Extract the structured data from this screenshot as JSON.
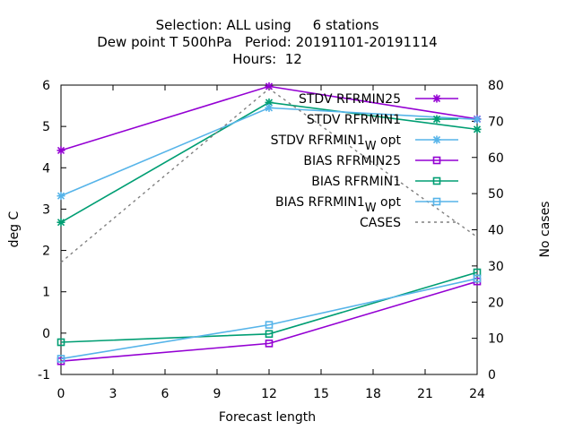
{
  "chart_data": {
    "type": "line",
    "title_lines": [
      "Selection: ALL using     6 stations",
      "Dew point T 500hPa   Period: 20191101-20191114",
      "Hours:  12"
    ],
    "xlabel": "Forecast length",
    "ylabel": "deg C",
    "y2label": "No cases",
    "xlim": [
      0,
      24
    ],
    "ylim": [
      -1,
      6
    ],
    "y2lim": [
      0,
      80
    ],
    "xticks": [
      "0",
      "3",
      "6",
      "9",
      "12",
      "15",
      "18",
      "21",
      "24"
    ],
    "yticks": [
      "-1",
      "0",
      "1",
      "2",
      "3",
      "4",
      "5",
      "6"
    ],
    "y2ticks": [
      "0",
      "10",
      "20",
      "30",
      "40",
      "50",
      "60",
      "70",
      "80"
    ],
    "grid": false,
    "legend_position": "top-right",
    "x": [
      0,
      12,
      24
    ],
    "series": [
      {
        "name": "STDV RFRMIN25",
        "name_sub": "",
        "name_tail": "",
        "axis": "y",
        "marker": "star",
        "dash": false,
        "color": "#9400d3",
        "values": [
          4.42,
          5.97,
          5.18
        ]
      },
      {
        "name": "STDV RFRMIN1",
        "name_sub": "",
        "name_tail": "",
        "axis": "y",
        "marker": "star",
        "dash": false,
        "color": "#009e73",
        "values": [
          2.68,
          5.58,
          4.93
        ]
      },
      {
        "name": "STDV RFRMIN1",
        "name_sub": "W",
        "name_tail": " opt",
        "axis": "y",
        "marker": "star",
        "dash": false,
        "color": "#56b4e9",
        "values": [
          3.32,
          5.45,
          5.17
        ]
      },
      {
        "name": "BIAS RFRMIN25",
        "name_sub": "",
        "name_tail": "",
        "axis": "y",
        "marker": "square",
        "dash": false,
        "color": "#9400d3",
        "values": [
          -0.68,
          -0.25,
          1.25
        ]
      },
      {
        "name": "BIAS RFRMIN1",
        "name_sub": "",
        "name_tail": "",
        "axis": "y",
        "marker": "square",
        "dash": false,
        "color": "#009e73",
        "values": [
          -0.22,
          -0.02,
          1.47
        ]
      },
      {
        "name": "BIAS RFRMIN1",
        "name_sub": "W",
        "name_tail": " opt",
        "axis": "y",
        "marker": "square",
        "dash": false,
        "color": "#56b4e9",
        "values": [
          -0.62,
          0.2,
          1.32
        ]
      },
      {
        "name": "CASES",
        "name_sub": "",
        "name_tail": "",
        "axis": "y2",
        "marker": "none",
        "dash": true,
        "color": "#808080",
        "values": [
          31,
          79,
          38
        ]
      }
    ]
  }
}
